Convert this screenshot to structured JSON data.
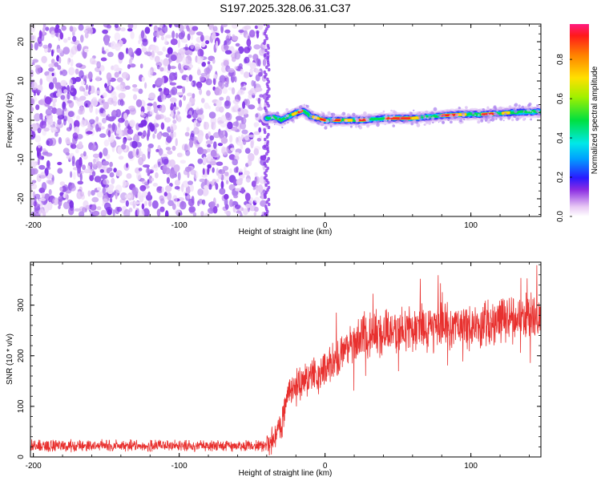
{
  "chart_data": [
    {
      "type": "heatmap",
      "title": "S197.2025.328.06.31.C37",
      "xlabel": "Height of straight line (km)",
      "ylabel": "Frequency (Hz)",
      "xlim": [
        -202,
        148
      ],
      "ylim": [
        -24.5,
        24.5
      ],
      "x_ticks": [
        -200,
        -100,
        0,
        100
      ],
      "y_ticks": [
        20,
        10,
        0,
        -10,
        -20
      ],
      "noise_region_x": [
        -202,
        -40
      ],
      "signal_line": [
        {
          "x": -40,
          "freq": 0.5
        },
        {
          "x": -35,
          "freq": 0.8
        },
        {
          "x": -30,
          "freq": 0.0
        },
        {
          "x": -25,
          "freq": 1.0
        },
        {
          "x": -20,
          "freq": 1.8
        },
        {
          "x": -15,
          "freq": 2.5
        },
        {
          "x": -10,
          "freq": 1.0
        },
        {
          "x": 0,
          "freq": 0.0
        },
        {
          "x": 10,
          "freq": 0.0
        },
        {
          "x": 25,
          "freq": 0.0
        },
        {
          "x": 40,
          "freq": 0.5
        },
        {
          "x": 60,
          "freq": 0.5
        },
        {
          "x": 80,
          "freq": 1.2
        },
        {
          "x": 95,
          "freq": 1.5
        },
        {
          "x": 110,
          "freq": 1.5
        },
        {
          "x": 130,
          "freq": 2.0
        },
        {
          "x": 148,
          "freq": 2.2
        }
      ],
      "colorbar": {
        "label": "Normalized spectral amplitude",
        "range": [
          0.0,
          0.98
        ],
        "ticks": [
          "0.0",
          "0.2",
          "0.4",
          "0.6",
          "0.8"
        ]
      }
    },
    {
      "type": "line",
      "xlabel": "Height of straight line (km)",
      "ylabel": "SNR (10 * v/v)",
      "xlim": [
        -202,
        148
      ],
      "ylim": [
        0,
        385
      ],
      "x_ticks": [
        -200,
        -100,
        0,
        100
      ],
      "y_ticks": [
        0,
        100,
        200,
        300
      ],
      "series": [
        {
          "name": "SNR",
          "color": "#e8302e",
          "trend": [
            {
              "x": -202,
              "y": 22
            },
            {
              "x": -40,
              "y": 22
            },
            {
              "x": -30,
              "y": 60
            },
            {
              "x": -25,
              "y": 130
            },
            {
              "x": -15,
              "y": 150
            },
            {
              "x": 0,
              "y": 170
            },
            {
              "x": 10,
              "y": 200
            },
            {
              "x": 20,
              "y": 230
            },
            {
              "x": 40,
              "y": 245
            },
            {
              "x": 60,
              "y": 255
            },
            {
              "x": 80,
              "y": 255
            },
            {
              "x": 100,
              "y": 260
            },
            {
              "x": 120,
              "y": 270
            },
            {
              "x": 148,
              "y": 280
            }
          ]
        }
      ]
    }
  ]
}
